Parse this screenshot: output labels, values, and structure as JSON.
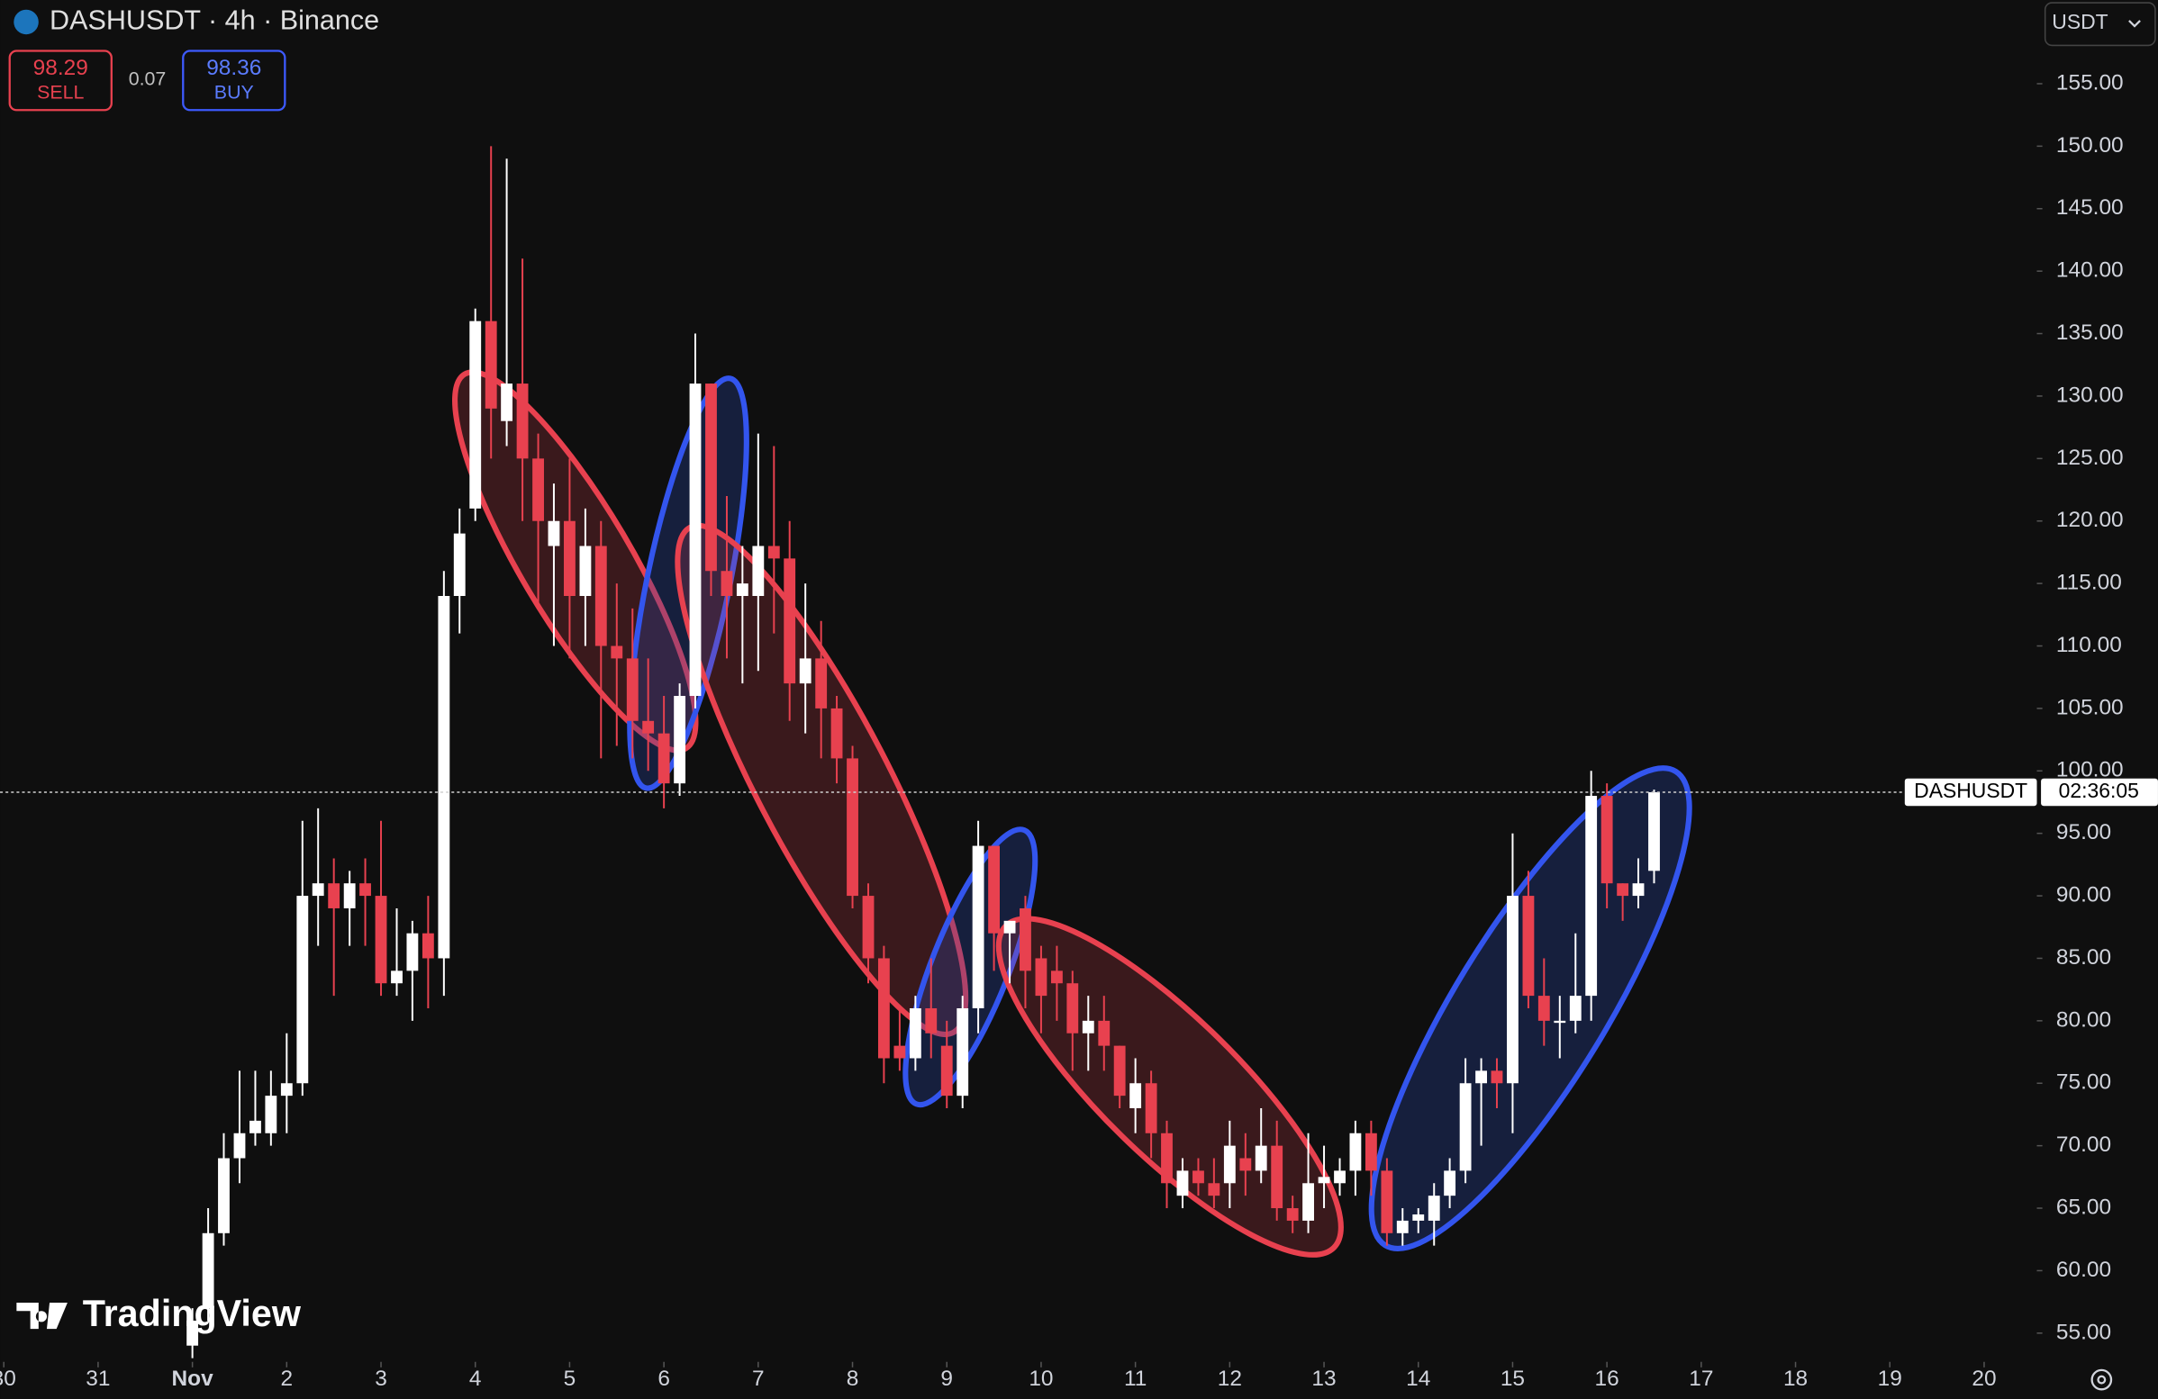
{
  "header": {
    "symbol": "DASHUSDT · 4h · Binance",
    "sell_price": "98.29",
    "sell_label": "SELL",
    "spread": "0.07",
    "buy_price": "98.36",
    "buy_label": "BUY",
    "currency": "USDT",
    "price_tag_symbol": "DASHUSDT",
    "price_tag_timer": "02:36:05",
    "watermark": "TradingView"
  },
  "chart_data": {
    "type": "candlestick",
    "x": [
      0,
      0.167,
      0.333,
      0.5,
      0.667,
      0.833,
      1,
      1.167,
      1.333,
      1.5,
      1.667,
      1.833,
      2,
      2.167,
      2.333,
      2.5,
      2.667,
      2.833,
      3,
      3.167,
      3.333,
      3.5,
      3.667,
      3.833,
      4,
      4.167,
      4.333,
      4.5,
      4.667,
      4.833,
      5,
      5.167,
      5.333,
      5.5,
      5.667,
      5.833,
      6,
      6.167,
      6.333,
      6.5,
      6.667,
      6.833,
      7,
      7.167,
      7.333,
      7.5,
      7.667,
      7.833,
      8,
      8.167,
      8.333,
      8.5,
      8.667,
      8.833,
      9,
      9.167,
      9.333,
      9.5,
      9.667,
      9.833,
      10,
      10.167,
      10.333,
      10.5,
      10.667,
      10.833,
      11,
      11.167,
      11.333,
      11.5,
      11.667,
      11.833,
      12,
      12.167,
      12.333,
      12.5,
      12.667,
      12.833,
      13,
      13.167,
      13.333,
      13.5,
      13.667,
      13.833,
      14,
      14.167,
      14.333,
      14.5,
      14.667,
      14.833,
      15,
      15.167,
      15.333,
      15.5
    ],
    "open": [
      54,
      57,
      63,
      69,
      71,
      71,
      74,
      75,
      90,
      91,
      89,
      91,
      90,
      83,
      84,
      87,
      85,
      114,
      121,
      136,
      128,
      131,
      125,
      118,
      120,
      114,
      118,
      110,
      109,
      104,
      103,
      99,
      106,
      131,
      116,
      114,
      114,
      118,
      117,
      107,
      109,
      105,
      101,
      90,
      85,
      78,
      77,
      81,
      78,
      74,
      81,
      94,
      87,
      89,
      85,
      84,
      83,
      79,
      80,
      78,
      73,
      75,
      71,
      66,
      68,
      67,
      67,
      69,
      68,
      70,
      65,
      64,
      67,
      67,
      68,
      71,
      68,
      63,
      64,
      64,
      66,
      68,
      75,
      76,
      75,
      90,
      82,
      80,
      80,
      82,
      98,
      91,
      90,
      92
    ],
    "high": [
      57,
      65,
      71,
      76,
      76,
      76,
      79,
      96,
      97,
      93,
      92,
      93,
      96,
      89,
      88,
      90,
      116,
      121,
      137,
      150,
      149,
      141,
      127,
      123,
      125,
      121,
      120,
      115,
      113,
      109,
      106,
      107,
      135,
      131,
      122,
      118,
      127,
      126,
      120,
      115,
      112,
      106,
      102,
      91,
      86,
      81,
      82,
      85,
      80,
      82,
      96,
      94,
      88,
      90,
      86,
      86,
      84,
      82,
      82,
      78,
      77,
      76,
      72,
      69,
      69,
      69,
      72,
      71,
      73,
      72,
      66,
      71,
      70,
      69,
      72,
      72,
      69,
      65,
      65,
      67,
      69,
      77,
      77,
      77,
      95,
      92,
      85,
      82,
      87,
      100,
      99,
      91,
      93,
      98.5
    ],
    "low": [
      53,
      56,
      62,
      67,
      70,
      70,
      71,
      74,
      86,
      82,
      86,
      86,
      82,
      82,
      80,
      81,
      82,
      111,
      120,
      125,
      126,
      120,
      113,
      110,
      109,
      110,
      101,
      102,
      101,
      100,
      97,
      98,
      105,
      114,
      109,
      107,
      108,
      111,
      104,
      103,
      101,
      99,
      89,
      83,
      75,
      76,
      76,
      77,
      73,
      73,
      79,
      84,
      83,
      81,
      79,
      80,
      76,
      76,
      76,
      73,
      71,
      69,
      65,
      65,
      66,
      65,
      65,
      66,
      67,
      64,
      63,
      63,
      65,
      66,
      66,
      66,
      62,
      62,
      63,
      62,
      65,
      67,
      70,
      73,
      71,
      81,
      78,
      77,
      79,
      80,
      89,
      88,
      89,
      91
    ],
    "close": [
      56,
      63,
      69,
      71,
      72,
      74,
      75,
      90,
      91,
      89,
      91,
      90,
      83,
      84,
      87,
      85,
      114,
      119,
      136,
      129,
      131,
      125,
      120,
      120,
      114,
      118,
      110,
      109,
      104,
      103,
      99,
      106,
      131,
      116,
      114,
      115,
      118,
      117,
      107,
      109,
      105,
      101,
      90,
      85,
      77,
      77,
      81,
      79,
      74,
      81,
      94,
      87,
      88,
      84,
      82,
      83,
      79,
      80,
      78,
      74,
      75,
      71,
      67,
      68,
      67,
      66,
      70,
      68,
      70,
      65,
      64,
      67,
      67.5,
      68,
      71,
      68,
      63,
      64,
      64.5,
      66,
      68,
      75,
      76,
      75,
      90,
      82,
      80,
      80,
      82,
      98,
      91,
      90,
      91,
      98.29
    ],
    "up_color": "#ffffff",
    "down_color": "#e8414f",
    "price_line": 98.29,
    "xlim": [
      -2.04,
      19.53
    ],
    "xticks": [
      {
        "value": -2,
        "label": "30"
      },
      {
        "value": -1,
        "label": "31"
      },
      {
        "value": 0,
        "label": "Nov"
      },
      {
        "value": 1,
        "label": "2"
      },
      {
        "value": 2,
        "label": "3"
      },
      {
        "value": 3,
        "label": "4"
      },
      {
        "value": 4,
        "label": "5"
      },
      {
        "value": 5,
        "label": "6"
      },
      {
        "value": 6,
        "label": "7"
      },
      {
        "value": 7,
        "label": "8"
      },
      {
        "value": 8,
        "label": "9"
      },
      {
        "value": 9,
        "label": "10"
      },
      {
        "value": 10,
        "label": "11"
      },
      {
        "value": 11,
        "label": "12"
      },
      {
        "value": 12,
        "label": "13"
      },
      {
        "value": 13,
        "label": "14"
      },
      {
        "value": 14,
        "label": "15"
      },
      {
        "value": 15,
        "label": "16"
      },
      {
        "value": 16,
        "label": "17"
      },
      {
        "value": 17,
        "label": "18"
      },
      {
        "value": 18,
        "label": "19"
      },
      {
        "value": 19,
        "label": "20"
      }
    ],
    "ylim": [
      52.7,
      161.7
    ],
    "yticks": [
      {
        "value": 55,
        "label": "55.00"
      },
      {
        "value": 60,
        "label": "60.00"
      },
      {
        "value": 65,
        "label": "65.00"
      },
      {
        "value": 70,
        "label": "70.00"
      },
      {
        "value": 75,
        "label": "75.00"
      },
      {
        "value": 80,
        "label": "80.00"
      },
      {
        "value": 85,
        "label": "85.00"
      },
      {
        "value": 90,
        "label": "90.00"
      },
      {
        "value": 95,
        "label": "95.00"
      },
      {
        "value": 100,
        "label": "100.00"
      },
      {
        "value": 105,
        "label": "105.00"
      },
      {
        "value": 110,
        "label": "110.00"
      },
      {
        "value": 115,
        "label": "115.00"
      },
      {
        "value": 120,
        "label": "120.00"
      },
      {
        "value": 125,
        "label": "125.00"
      },
      {
        "value": 130,
        "label": "130.00"
      },
      {
        "value": 135,
        "label": "135.00"
      },
      {
        "value": 140,
        "label": "140.00"
      },
      {
        "value": 145,
        "label": "145.00"
      },
      {
        "value": 150,
        "label": "150.00"
      },
      {
        "value": 155,
        "label": "155.00"
      }
    ]
  }
}
